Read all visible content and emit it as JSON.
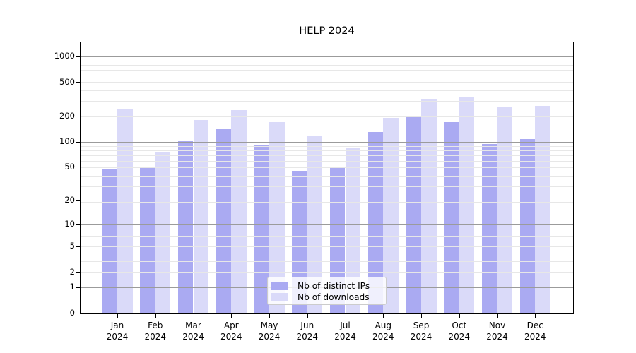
{
  "title": "HELP 2024",
  "chart_data": {
    "type": "bar",
    "title": "HELP 2024",
    "year": "2024",
    "categories": [
      "Jan",
      "Feb",
      "Mar",
      "Apr",
      "May",
      "Jun",
      "Jul",
      "Aug",
      "Sep",
      "Oct",
      "Nov",
      "Dec"
    ],
    "series": [
      {
        "name": "Nb of distinct IPs",
        "color": "#aaaaf2",
        "values": [
          48,
          50,
          101,
          141,
          92,
          45,
          50,
          129,
          194,
          168,
          93,
          108
        ]
      },
      {
        "name": "Nb of downloads",
        "color": "#dadaf9",
        "values": [
          237,
          75,
          179,
          234,
          170,
          117,
          85,
          189,
          318,
          331,
          252,
          263
        ]
      }
    ],
    "yscale": "log(value+1)",
    "yticks": [
      0,
      1,
      2,
      5,
      10,
      20,
      50,
      100,
      200,
      500,
      1000
    ],
    "ylim": [
      0,
      1490
    ],
    "grid": true,
    "legend_position": "lower center"
  },
  "colors": {
    "minor_grid": "#e7e7e7",
    "major_grid": "#9b9b9b",
    "axis": "#000000",
    "background": "#ffffff"
  }
}
